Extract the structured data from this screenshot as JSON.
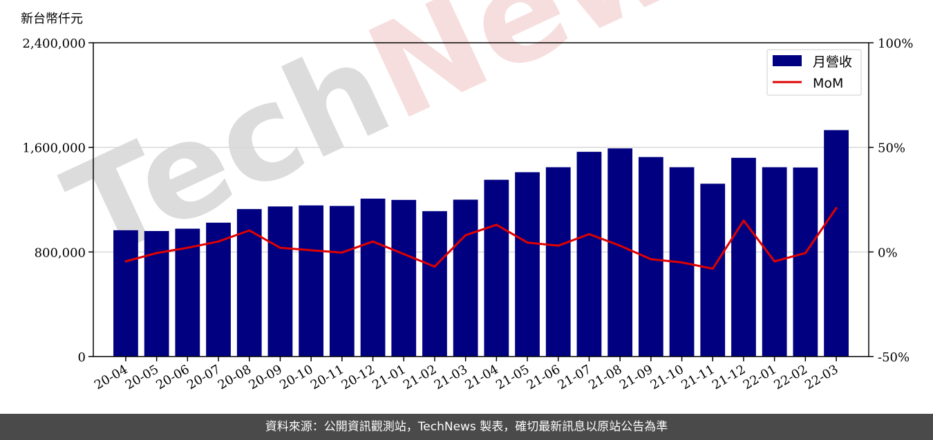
{
  "footer": {
    "source_text": "資料來源：公開資訊觀測站，TechNews 製表，確切最新訊息以原站公告為準"
  },
  "watermark": {
    "text": "TechNews",
    "colors": {
      "tech": "#dcdcdc",
      "news": "#f7dede"
    }
  },
  "chart_data": {
    "type": "bar",
    "unit_label": "新台幣仟元",
    "categories": [
      "20-04",
      "20-05",
      "20-06",
      "20-07",
      "20-08",
      "20-09",
      "20-10",
      "20-11",
      "20-12",
      "21-01",
      "21-02",
      "21-03",
      "21-04",
      "21-05",
      "21-06",
      "21-07",
      "21-08",
      "21-09",
      "21-10",
      "21-11",
      "21-12",
      "22-01",
      "22-02",
      "22-03"
    ],
    "series": [
      {
        "name": "月營收",
        "type": "bar",
        "axis": "left",
        "color": "#000080",
        "values": [
          966000,
          960000,
          978000,
          1024000,
          1128000,
          1148000,
          1156000,
          1152000,
          1208000,
          1198000,
          1112000,
          1200000,
          1352000,
          1410000,
          1448000,
          1566000,
          1592000,
          1526000,
          1448000,
          1322000,
          1520000,
          1448000,
          1446000,
          1732000
        ]
      },
      {
        "name": "MoM",
        "type": "line",
        "axis": "right",
        "color": "#e00000",
        "values": [
          -4.5,
          -0.5,
          2.0,
          5.0,
          10.3,
          2.0,
          0.8,
          -0.3,
          5.0,
          -1.0,
          -7.0,
          8.0,
          13.0,
          4.5,
          3.0,
          8.5,
          3.0,
          -3.5,
          -5.0,
          -8.0,
          15.0,
          -4.5,
          -0.5,
          21.0
        ]
      }
    ],
    "y_left": {
      "ylim": [
        0,
        2400000
      ],
      "ticks": [
        0,
        800000,
        1600000,
        2400000
      ],
      "tick_labels": [
        "0",
        "800,000",
        "1,600,000",
        "2,400,000"
      ]
    },
    "y_right": {
      "ylim": [
        -50,
        100
      ],
      "ticks": [
        -50,
        0,
        50,
        100
      ],
      "tick_labels": [
        "-50%",
        "0%",
        "50%",
        "100%"
      ]
    },
    "grid": "horizontal",
    "legend": "top-right",
    "x_tick_rotation_deg": -30
  }
}
